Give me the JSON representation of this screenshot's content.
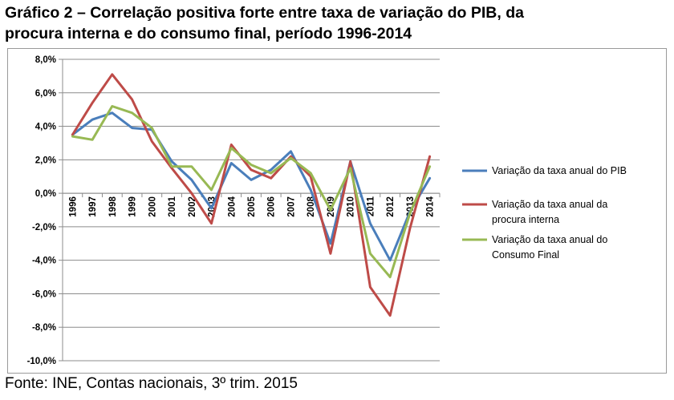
{
  "title": {
    "line1": "Gráfico 2 – Correlação positiva forte entre taxa de variação do PIB, da",
    "line2": "procura interna e do consumo final, período 1996-2014"
  },
  "source": "Fonte: INE, Contas nacionais, 3º trim. 2015",
  "chart_data": {
    "type": "line",
    "title": "Gráfico 2 – Correlação positiva forte entre taxa de variação do PIB, da procura interna e do consumo final, período 1996-2014",
    "xlabel": "",
    "ylabel": "",
    "categories": [
      "1996",
      "1997",
      "1998",
      "1999",
      "2000",
      "2001",
      "2002",
      "2003",
      "2004",
      "2005",
      "2006",
      "2007",
      "2008",
      "2009",
      "2010",
      "2011",
      "2012",
      "2013",
      "2014"
    ],
    "ylim": [
      -10,
      8
    ],
    "ytick_step": 2,
    "ytick_labels": [
      "8,0%",
      "6,0%",
      "4,0%",
      "2,0%",
      "0,0%",
      "-2,0%",
      "-4,0%",
      "-6,0%",
      "-8,0%",
      "-10,0%"
    ],
    "grid": true,
    "legend_position": "right",
    "series": [
      {
        "name": "Variação da taxa anual do  PIB",
        "legend_lines": [
          "Variação da taxa anual do  PIB"
        ],
        "color": "#4a7ebb",
        "values": [
          3.5,
          4.4,
          4.8,
          3.9,
          3.8,
          1.9,
          0.8,
          -0.9,
          1.8,
          0.8,
          1.4,
          2.5,
          0.2,
          -3.0,
          1.9,
          -1.8,
          -4.0,
          -1.1,
          0.9
        ]
      },
      {
        "name": "Variação da taxa anual da procura interna",
        "legend_lines": [
          "Variação da taxa anual da",
          "procura interna"
        ],
        "color": "#be4b48",
        "values": [
          3.5,
          5.4,
          7.1,
          5.6,
          3.1,
          1.5,
          0.0,
          -1.8,
          2.9,
          1.4,
          0.9,
          2.2,
          1.0,
          -3.6,
          1.9,
          -5.6,
          -7.3,
          -2.1,
          2.2
        ]
      },
      {
        "name": "Variação da taxa anual do Consumo Final",
        "legend_lines": [
          "Variação da taxa anual do",
          "Consumo Final"
        ],
        "color": "#98b954",
        "values": [
          3.4,
          3.2,
          5.2,
          4.8,
          3.9,
          1.6,
          1.6,
          0.2,
          2.7,
          1.7,
          1.2,
          2.1,
          1.2,
          -1.0,
          1.5,
          -3.6,
          -5.0,
          -1.2,
          1.6
        ]
      }
    ]
  }
}
